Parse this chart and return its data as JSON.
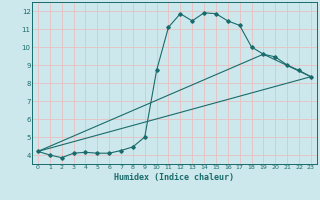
{
  "xlabel": "Humidex (Indice chaleur)",
  "xlim": [
    -0.5,
    23.5
  ],
  "ylim": [
    3.5,
    12.5
  ],
  "yticks": [
    4,
    5,
    6,
    7,
    8,
    9,
    10,
    11,
    12
  ],
  "xticks": [
    0,
    1,
    2,
    3,
    4,
    5,
    6,
    7,
    8,
    9,
    10,
    11,
    12,
    13,
    14,
    15,
    16,
    17,
    18,
    19,
    20,
    21,
    22,
    23
  ],
  "bg_color": "#cce8ec",
  "line_color": "#1a6b6b",
  "grid_color": "#e8c0c0",
  "line1_x": [
    0,
    1,
    2,
    3,
    4,
    5,
    6,
    7,
    8,
    9,
    10,
    11,
    12,
    13,
    14,
    15,
    16,
    17,
    18,
    19,
    20,
    21,
    22,
    23
  ],
  "line1_y": [
    4.2,
    4.0,
    3.85,
    4.1,
    4.15,
    4.1,
    4.1,
    4.25,
    4.45,
    5.0,
    8.7,
    11.1,
    11.85,
    11.45,
    11.9,
    11.85,
    11.45,
    11.2,
    10.0,
    9.6,
    9.45,
    9.0,
    8.7,
    8.35
  ],
  "line2_x": [
    0,
    19,
    23
  ],
  "line2_y": [
    4.2,
    9.6,
    8.35
  ],
  "line3_x": [
    0,
    23
  ],
  "line3_y": [
    4.2,
    8.35
  ]
}
